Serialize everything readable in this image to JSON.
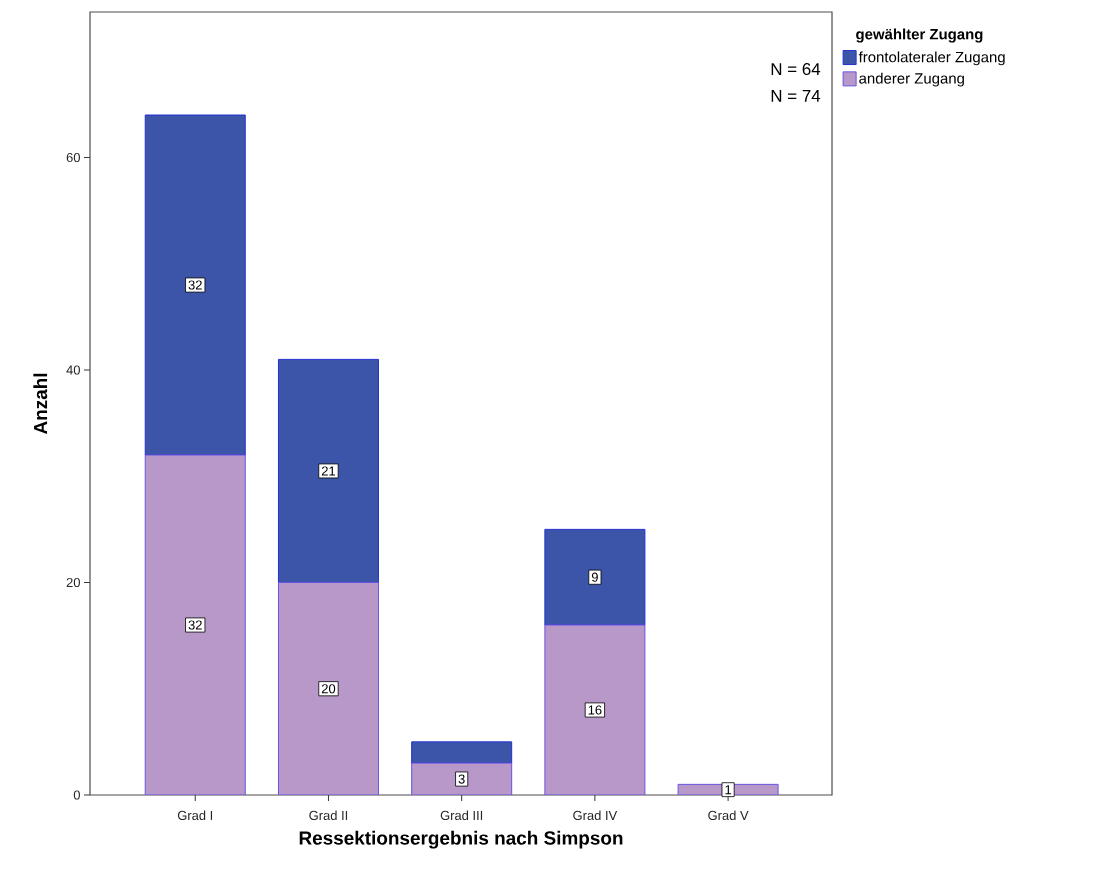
{
  "chart_data": {
    "type": "bar",
    "stacked": true,
    "xlabel": "Ressektionsergebnis nach Simpson",
    "ylabel": "Anzahl",
    "categories": [
      "Grad I",
      "Grad II",
      "Grad III",
      "Grad IV",
      "Grad V"
    ],
    "series": [
      {
        "name": "anderer Zugang",
        "color": "#b898c8",
        "values": [
          32,
          20,
          3,
          16,
          1
        ],
        "value_labels": [
          "32",
          "20",
          "3",
          "16",
          "1"
        ]
      },
      {
        "name": "frontolateraler Zugang",
        "color": "#3d55a8",
        "values": [
          32,
          21,
          2,
          9,
          0
        ],
        "value_labels": [
          "32",
          "21",
          null,
          "9",
          null
        ]
      }
    ],
    "legend_title": "gewählter Zugang",
    "legend": "top right",
    "annotations": [
      "N = 64",
      "N = 74"
    ],
    "ylim": [
      0,
      73.7
    ],
    "yticks": [
      0,
      20,
      40,
      60
    ]
  }
}
